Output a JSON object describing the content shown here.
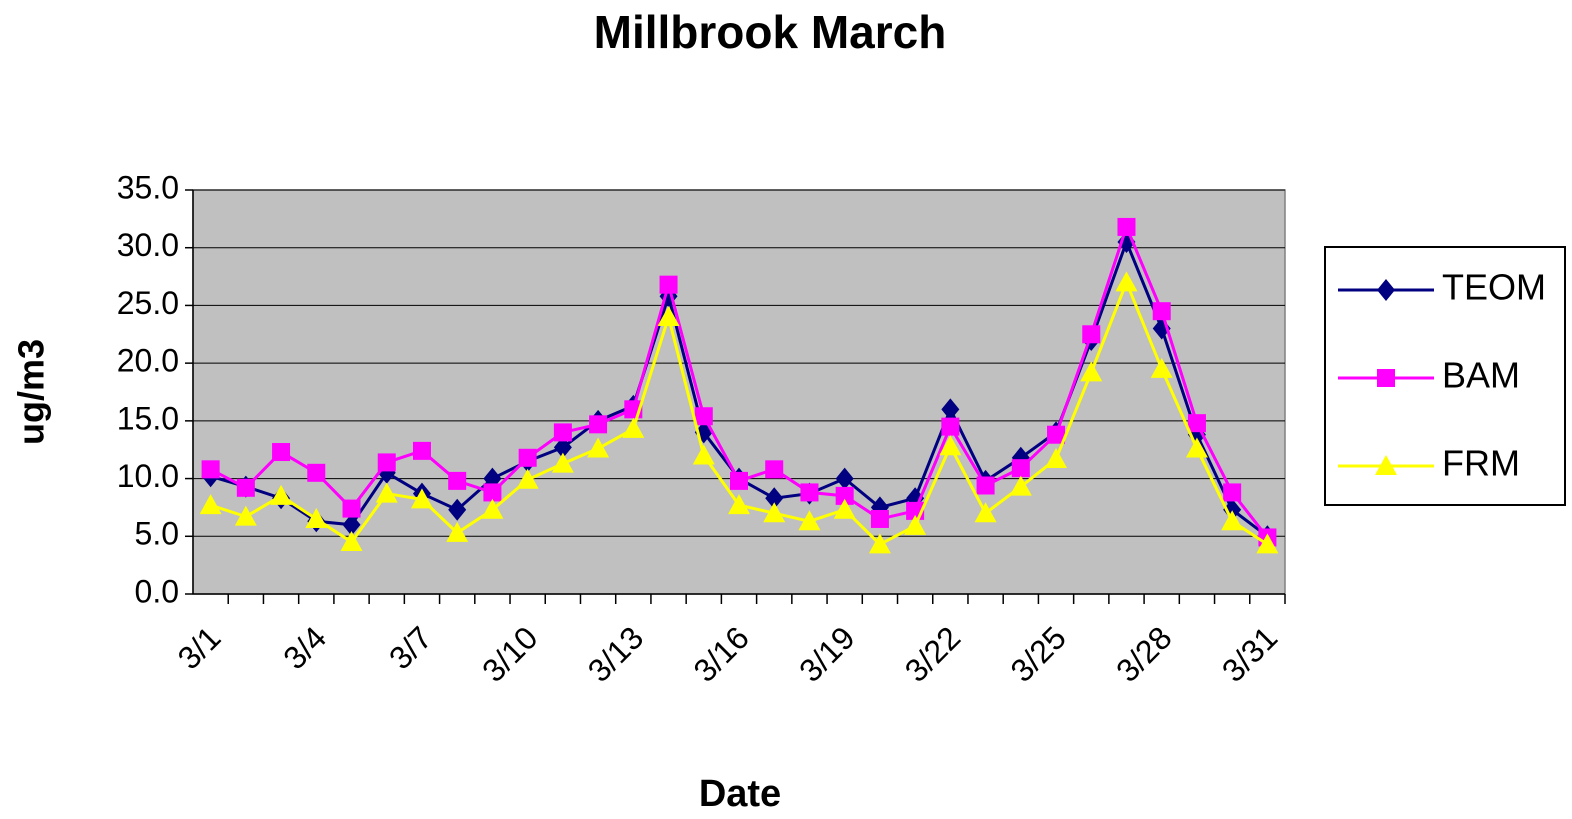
{
  "chart_data": {
    "type": "line",
    "title": "Millbrook March",
    "x_label": "Date",
    "y_label": "ug/m3",
    "categories": [
      "3/1",
      null,
      null,
      "3/4",
      null,
      null,
      "3/7",
      null,
      null,
      "3/10",
      null,
      null,
      "3/13",
      null,
      null,
      "3/16",
      null,
      null,
      "3/19",
      null,
      null,
      "3/22",
      null,
      null,
      "3/25",
      null,
      null,
      "3/28",
      null,
      null,
      "3/31"
    ],
    "series": [
      {
        "name": "TEOM",
        "color": "#000080",
        "marker": "diamond",
        "values": [
          10.2,
          9.3,
          8.3,
          6.3,
          6.0,
          10.5,
          8.7,
          7.3,
          10.0,
          11.5,
          12.7,
          15.0,
          16.3,
          25.8,
          14.0,
          10.0,
          8.3,
          8.7,
          10.0,
          7.5,
          8.3,
          16.0,
          9.8,
          11.8,
          14.0,
          22.0,
          30.5,
          23.0,
          13.8,
          7.3,
          5.0
        ]
      },
      {
        "name": "BAM",
        "color": "#ff00ff",
        "marker": "square",
        "values": [
          10.8,
          9.2,
          12.3,
          10.5,
          7.4,
          11.4,
          12.4,
          9.8,
          8.8,
          11.8,
          14.0,
          14.7,
          16.0,
          26.8,
          15.4,
          9.8,
          10.8,
          8.8,
          8.5,
          6.5,
          7.2,
          14.5,
          9.4,
          10.9,
          13.8,
          22.5,
          31.8,
          24.5,
          14.8,
          8.8,
          4.9
        ]
      },
      {
        "name": "FRM",
        "color": "#ffff00",
        "marker": "triangle",
        "values": [
          7.7,
          6.7,
          8.5,
          6.5,
          4.5,
          8.7,
          8.2,
          5.3,
          7.3,
          9.9,
          11.3,
          12.6,
          14.3,
          24.0,
          12.0,
          7.7,
          7.0,
          6.3,
          7.3,
          4.3,
          5.9,
          12.8,
          7.0,
          9.3,
          11.7,
          19.2,
          27.0,
          19.5,
          12.6,
          6.3,
          4.3
        ]
      }
    ],
    "ylim": [
      0,
      35
    ],
    "yticks": [
      {
        "value": 0,
        "label": "0.0"
      },
      {
        "value": 5,
        "label": "5.0"
      },
      {
        "value": 10,
        "label": "10.0"
      },
      {
        "value": 15,
        "label": "15.0"
      },
      {
        "value": 20,
        "label": "20.0"
      },
      {
        "value": 25,
        "label": "25.0"
      },
      {
        "value": 30,
        "label": "30.0"
      },
      {
        "value": 35,
        "label": "35.0"
      }
    ],
    "grid": true,
    "legend": "right",
    "plot_background": "#c0c0c0"
  }
}
